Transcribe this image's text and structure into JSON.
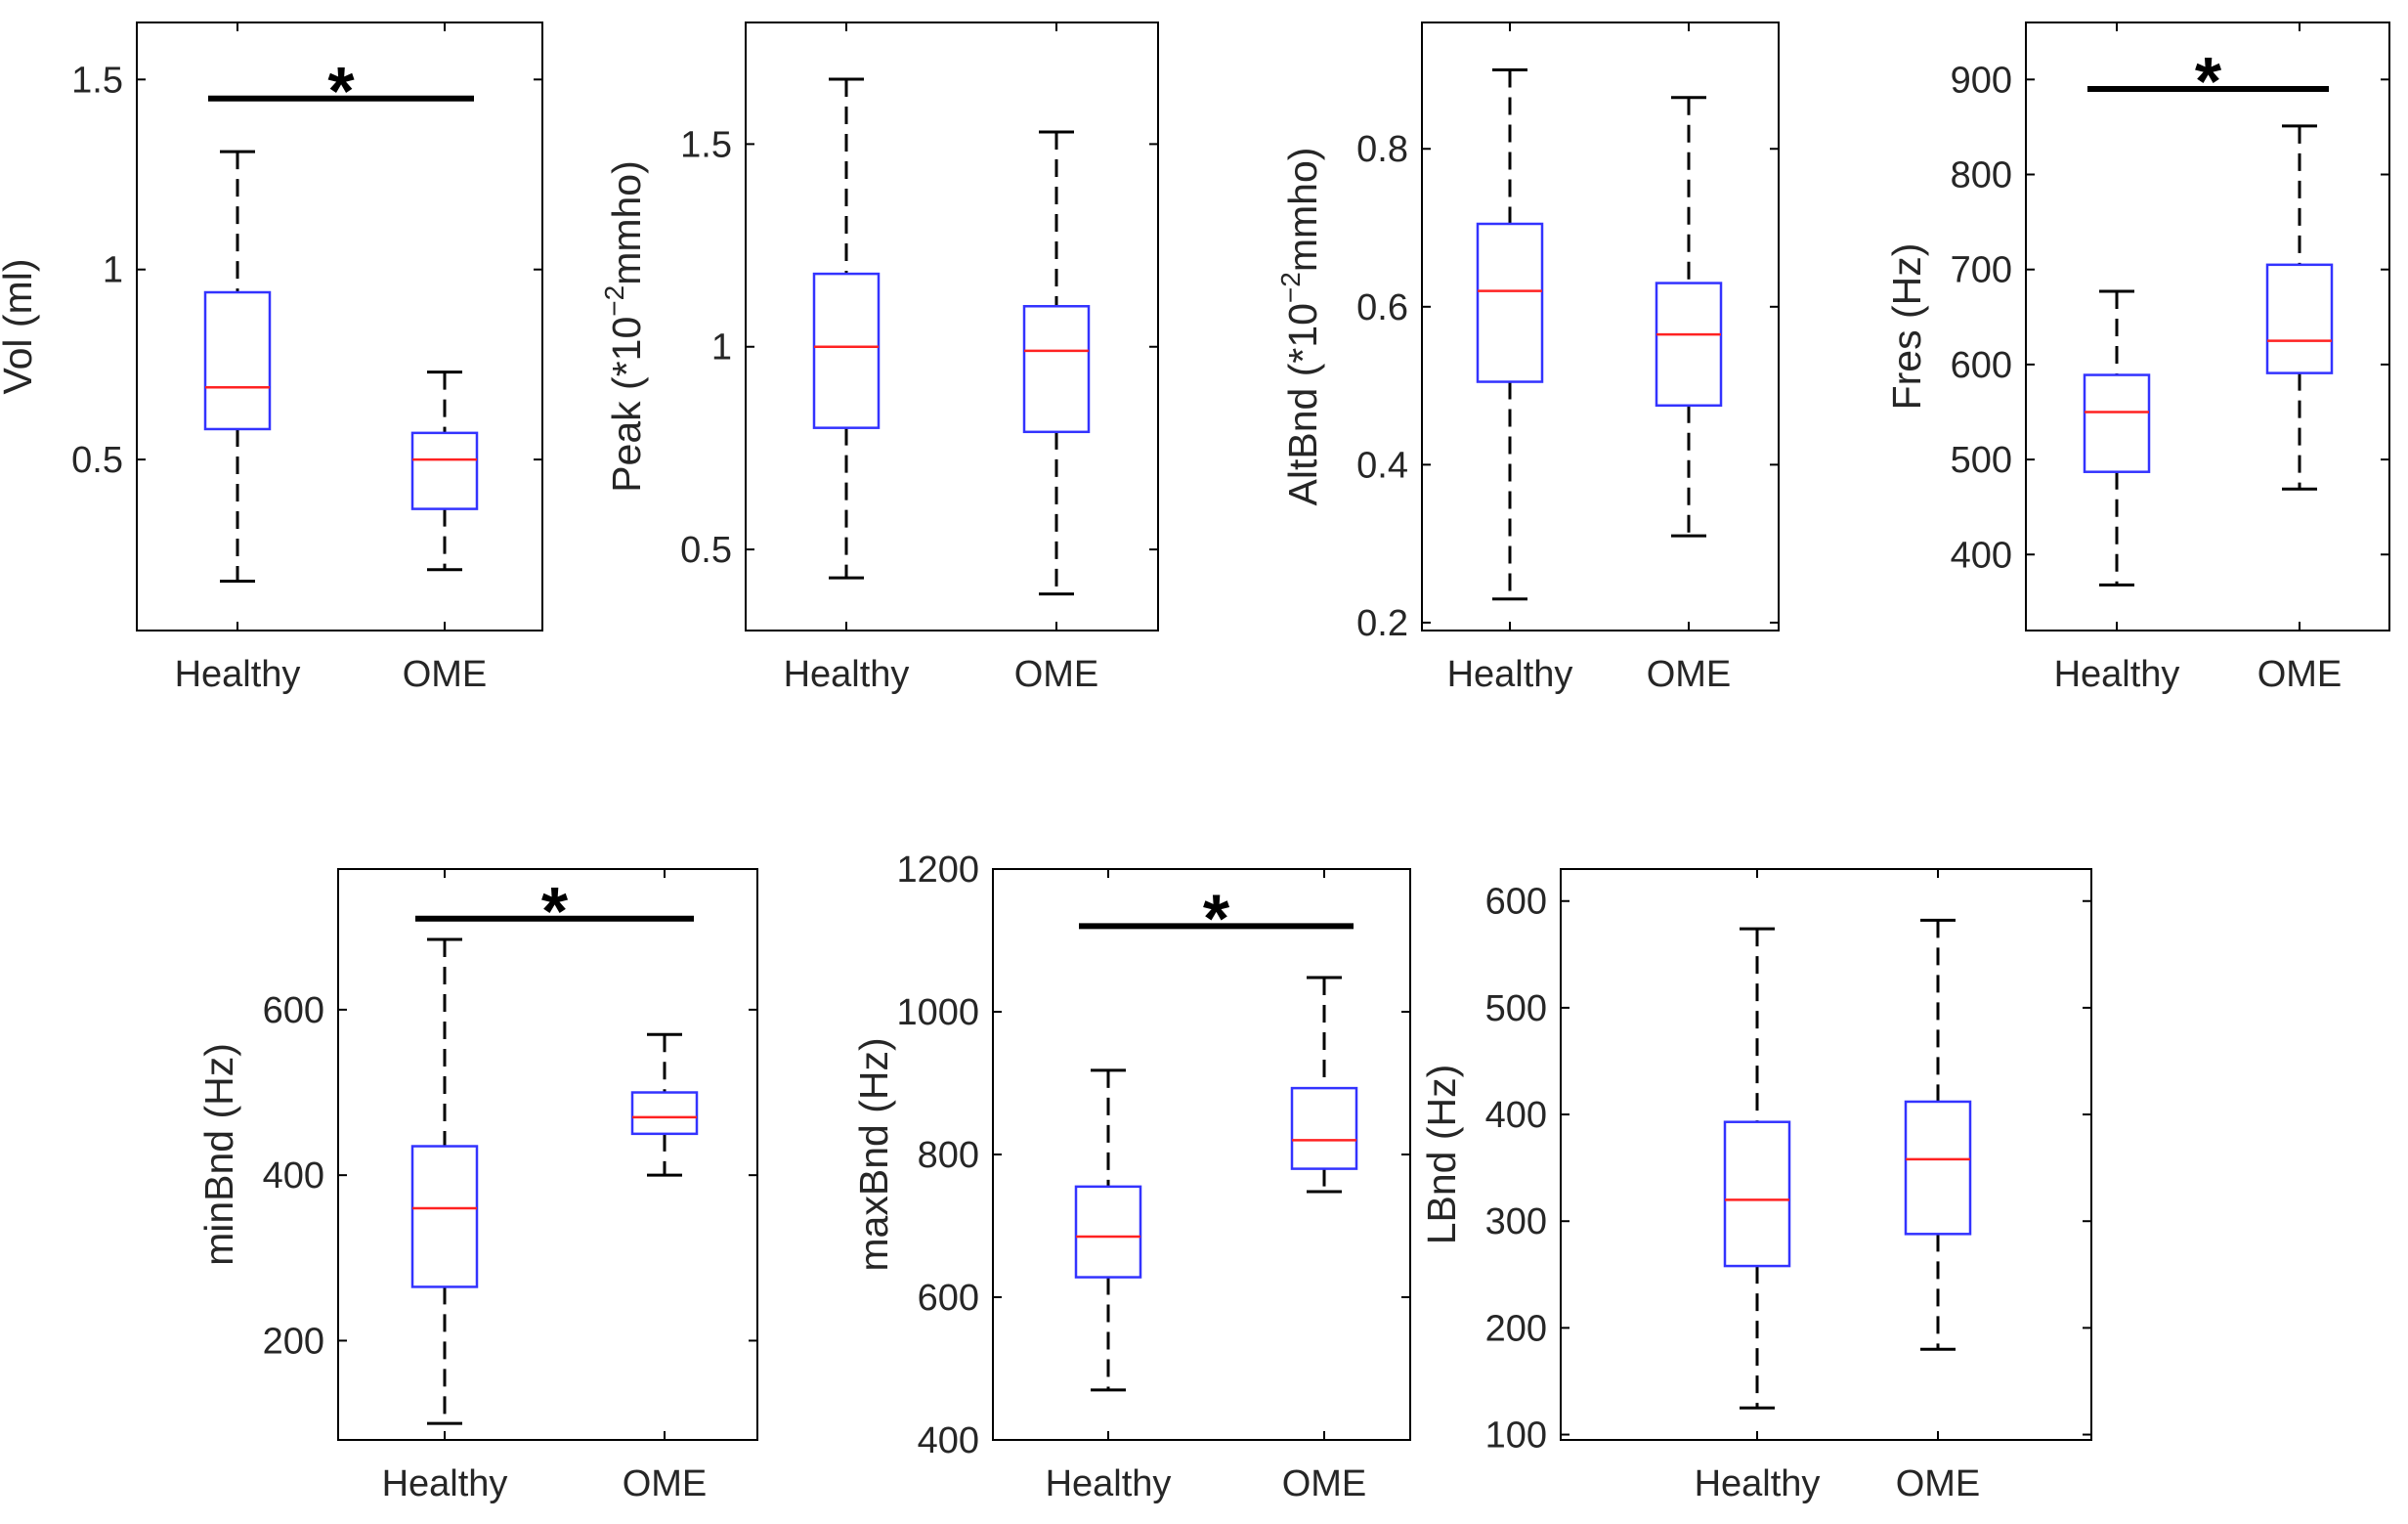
{
  "colors": {
    "box": "#3333ff",
    "median": "#ff2222",
    "whisker": "#000000",
    "axes": "#000000",
    "significance": "#000000"
  },
  "chart_data": [
    {
      "type": "boxplot",
      "id": "vol",
      "title": "",
      "ylabel": "Vol (ml)",
      "ylabel_sup": "",
      "ylabel_suffix": "",
      "ylim": [
        0.05,
        1.65
      ],
      "yticks": [
        0.5,
        1,
        1.5
      ],
      "ytick_labels": [
        "0.5",
        "1",
        "1.5"
      ],
      "categories": [
        "Healthy",
        "OME"
      ],
      "boxes": [
        {
          "group": "Healthy",
          "whisker_low": 0.18,
          "q1": 0.58,
          "median": 0.69,
          "q3": 0.94,
          "whisker_high": 1.31
        },
        {
          "group": "OME",
          "whisker_low": 0.21,
          "q1": 0.37,
          "median": 0.5,
          "q3": 0.57,
          "whisker_high": 0.73
        }
      ],
      "significance": {
        "label": "*",
        "value": 1.45
      }
    },
    {
      "type": "boxplot",
      "id": "peak",
      "title": "",
      "ylabel": "Peak (*10",
      "ylabel_sup": "−2",
      "ylabel_suffix": "mmho)",
      "ylim": [
        0.3,
        1.8
      ],
      "yticks": [
        0.5,
        1,
        1.5
      ],
      "ytick_labels": [
        "0.5",
        "1",
        "1.5"
      ],
      "categories": [
        "Healthy",
        "OME"
      ],
      "boxes": [
        {
          "group": "Healthy",
          "whisker_low": 0.43,
          "q1": 0.8,
          "median": 1.0,
          "q3": 1.18,
          "whisker_high": 1.66
        },
        {
          "group": "OME",
          "whisker_low": 0.39,
          "q1": 0.79,
          "median": 0.99,
          "q3": 1.1,
          "whisker_high": 1.53
        }
      ],
      "significance": null
    },
    {
      "type": "boxplot",
      "id": "altbnd",
      "title": "",
      "ylabel": "AltBnd (*10",
      "ylabel_sup": "−2",
      "ylabel_suffix": "mmho)",
      "ylim": [
        0.19,
        0.96
      ],
      "yticks": [
        0.2,
        0.4,
        0.6,
        0.8
      ],
      "ytick_labels": [
        "0.2",
        "0.4",
        "0.6",
        "0.8"
      ],
      "categories": [
        "Healthy",
        "OME"
      ],
      "boxes": [
        {
          "group": "Healthy",
          "whisker_low": 0.23,
          "q1": 0.505,
          "median": 0.62,
          "q3": 0.705,
          "whisker_high": 0.9
        },
        {
          "group": "OME",
          "whisker_low": 0.31,
          "q1": 0.475,
          "median": 0.565,
          "q3": 0.63,
          "whisker_high": 0.865
        }
      ],
      "significance": null
    },
    {
      "type": "boxplot",
      "id": "fres",
      "title": "",
      "ylabel": "Fres (Hz)",
      "ylabel_sup": "",
      "ylabel_suffix": "",
      "ylim": [
        320,
        960
      ],
      "yticks": [
        400,
        500,
        600,
        700,
        800,
        900
      ],
      "ytick_labels": [
        "400",
        "500",
        "600",
        "700",
        "800",
        "900"
      ],
      "categories": [
        "Healthy",
        "OME"
      ],
      "boxes": [
        {
          "group": "Healthy",
          "whisker_low": 368,
          "q1": 487,
          "median": 550,
          "q3": 589,
          "whisker_high": 677
        },
        {
          "group": "OME",
          "whisker_low": 469,
          "q1": 591,
          "median": 625,
          "q3": 705,
          "whisker_high": 851
        }
      ],
      "significance": {
        "label": "*",
        "value": 890
      }
    },
    {
      "type": "boxplot",
      "id": "minbnd",
      "title": "",
      "ylabel": "minBnd (Hz)",
      "ylabel_sup": "",
      "ylabel_suffix": "",
      "ylim": [
        80,
        770
      ],
      "yticks": [
        200,
        400,
        600
      ],
      "ytick_labels": [
        "200",
        "400",
        "600"
      ],
      "categories": [
        "Healthy",
        "OME"
      ],
      "boxes": [
        {
          "group": "Healthy",
          "whisker_low": 100,
          "q1": 265,
          "median": 360,
          "q3": 435,
          "whisker_high": 685
        },
        {
          "group": "OME",
          "whisker_low": 400,
          "q1": 450,
          "median": 470,
          "q3": 500,
          "whisker_high": 570
        }
      ],
      "significance": {
        "label": "*",
        "value": 710
      }
    },
    {
      "type": "boxplot",
      "id": "maxbnd",
      "title": "",
      "ylabel": "maxBnd (Hz)",
      "ylabel_sup": "",
      "ylabel_suffix": "",
      "ylim": [
        400,
        1200
      ],
      "yticks": [
        400,
        600,
        800,
        1000,
        1200
      ],
      "ytick_labels": [
        "400",
        "600",
        "800",
        "1000",
        "1200"
      ],
      "categories": [
        "Healthy",
        "OME"
      ],
      "boxes": [
        {
          "group": "Healthy",
          "whisker_low": 470,
          "q1": 628,
          "median": 685,
          "q3": 755,
          "whisker_high": 918
        },
        {
          "group": "OME",
          "whisker_low": 748,
          "q1": 780,
          "median": 820,
          "q3": 893,
          "whisker_high": 1048
        }
      ],
      "significance": {
        "label": "*",
        "value": 1120
      }
    },
    {
      "type": "boxplot",
      "id": "lbnd",
      "title": "",
      "ylabel": "LBnd (Hz)",
      "ylabel_sup": "",
      "ylabel_suffix": "",
      "ylim": [
        95,
        630
      ],
      "yticks": [
        100,
        200,
        300,
        400,
        500,
        600
      ],
      "ytick_labels": [
        "100",
        "200",
        "300",
        "400",
        "500",
        "600"
      ],
      "categories": [
        "Healthy",
        "OME"
      ],
      "boxes": [
        {
          "group": "Healthy",
          "whisker_low": 125,
          "q1": 258,
          "median": 320,
          "q3": 393,
          "whisker_high": 574
        },
        {
          "group": "OME",
          "whisker_low": 180,
          "q1": 288,
          "median": 358,
          "q3": 412,
          "whisker_high": 582
        }
      ],
      "significance": null
    }
  ]
}
